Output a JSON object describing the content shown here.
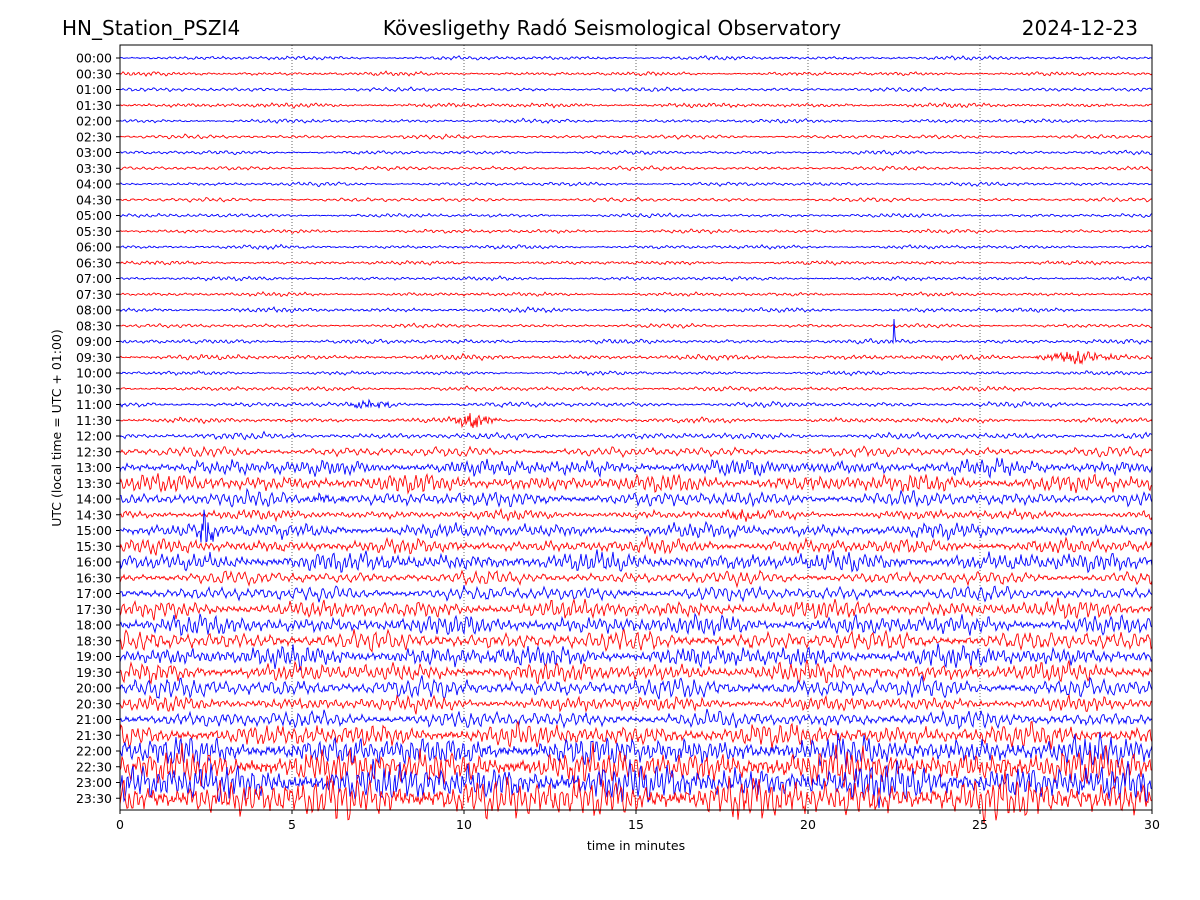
{
  "header": {
    "station": "HN_Station_PSZI4",
    "observatory": "Kövesligethy Radó Seismological Observatory",
    "date": "2024-12-23"
  },
  "chart_data": {
    "type": "line",
    "title": "Kövesligethy Radó Seismological Observatory",
    "xlabel": "time in minutes",
    "ylabel": "UTC (local time = UTC + 01:00)",
    "xlim": [
      0,
      30
    ],
    "x_ticks": [
      "0",
      "5",
      "10",
      "15",
      "20",
      "25",
      "30"
    ],
    "grid": "vertical dotted lines at each x tick",
    "colors": {
      "even_rows": "#0000ff",
      "odd_rows": "#ff0000"
    },
    "rows": [
      {
        "label": "00:00",
        "amplitude": 0.12
      },
      {
        "label": "00:30",
        "amplitude": 0.12
      },
      {
        "label": "01:00",
        "amplitude": 0.12
      },
      {
        "label": "01:30",
        "amplitude": 0.14
      },
      {
        "label": "02:00",
        "amplitude": 0.12
      },
      {
        "label": "02:30",
        "amplitude": 0.12
      },
      {
        "label": "03:00",
        "amplitude": 0.12
      },
      {
        "label": "03:30",
        "amplitude": 0.12
      },
      {
        "label": "04:00",
        "amplitude": 0.12
      },
      {
        "label": "04:30",
        "amplitude": 0.12
      },
      {
        "label": "05:00",
        "amplitude": 0.12
      },
      {
        "label": "05:30",
        "amplitude": 0.12
      },
      {
        "label": "06:00",
        "amplitude": 0.12
      },
      {
        "label": "06:30",
        "amplitude": 0.12
      },
      {
        "label": "07:00",
        "amplitude": 0.12
      },
      {
        "label": "07:30",
        "amplitude": 0.12
      },
      {
        "label": "08:00",
        "amplitude": 0.14
      },
      {
        "label": "08:30",
        "amplitude": 0.12
      },
      {
        "label": "09:00",
        "amplitude": 0.14
      },
      {
        "label": "09:30",
        "amplitude": 0.16
      },
      {
        "label": "10:00",
        "amplitude": 0.12
      },
      {
        "label": "10:30",
        "amplitude": 0.14
      },
      {
        "label": "11:00",
        "amplitude": 0.16
      },
      {
        "label": "11:30",
        "amplitude": 0.16
      },
      {
        "label": "12:00",
        "amplitude": 0.2
      },
      {
        "label": "12:30",
        "amplitude": 0.3
      },
      {
        "label": "13:00",
        "amplitude": 0.5
      },
      {
        "label": "13:30",
        "amplitude": 0.55
      },
      {
        "label": "14:00",
        "amplitude": 0.45
      },
      {
        "label": "14:30",
        "amplitude": 0.3
      },
      {
        "label": "15:00",
        "amplitude": 0.45
      },
      {
        "label": "15:30",
        "amplitude": 0.45
      },
      {
        "label": "16:00",
        "amplitude": 0.6
      },
      {
        "label": "16:30",
        "amplitude": 0.4
      },
      {
        "label": "17:00",
        "amplitude": 0.45
      },
      {
        "label": "17:30",
        "amplitude": 0.55
      },
      {
        "label": "18:00",
        "amplitude": 0.6
      },
      {
        "label": "18:30",
        "amplitude": 0.6
      },
      {
        "label": "19:00",
        "amplitude": 0.65
      },
      {
        "label": "19:30",
        "amplitude": 0.6
      },
      {
        "label": "20:00",
        "amplitude": 0.6
      },
      {
        "label": "20:30",
        "amplitude": 0.45
      },
      {
        "label": "21:00",
        "amplitude": 0.5
      },
      {
        "label": "21:30",
        "amplitude": 0.7
      },
      {
        "label": "22:00",
        "amplitude": 0.9
      },
      {
        "label": "22:30",
        "amplitude": 1.1
      },
      {
        "label": "23:00",
        "amplitude": 1.2
      },
      {
        "label": "23:30",
        "amplitude": 1.3
      }
    ],
    "events": [
      {
        "row": "09:30",
        "x": 27.8,
        "amplitude": 0.4,
        "duration": 1.4
      },
      {
        "row": "11:00",
        "x": 7.3,
        "amplitude": 0.25,
        "duration": 0.9
      },
      {
        "row": "11:30",
        "x": 10.3,
        "amplitude": 0.5,
        "duration": 0.8
      },
      {
        "row": "14:00",
        "x": 6.0,
        "amplitude": 0.35,
        "duration": 0.8
      },
      {
        "row": "14:30",
        "x": 18.0,
        "amplitude": 0.3,
        "duration": 1.0
      },
      {
        "row": "15:00",
        "x": 2.5,
        "amplitude": 1.6,
        "duration": 0.3
      },
      {
        "row": "09:00",
        "x": 22.5,
        "amplitude": 2.6,
        "duration": 0.05
      }
    ]
  }
}
